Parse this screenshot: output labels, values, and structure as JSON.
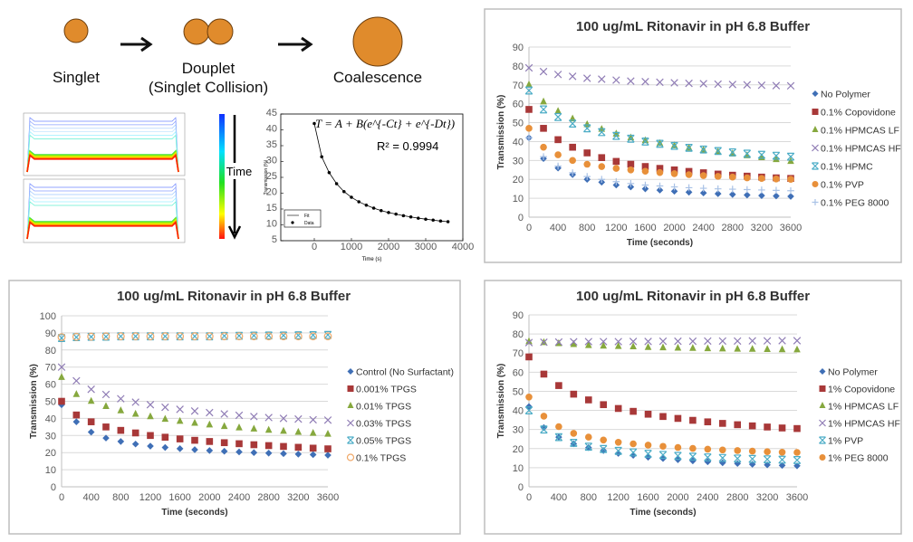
{
  "schematic": {
    "singlet_label": "Singlet",
    "douplet_label": "Douplet",
    "douplet_sub": "(Singlet Collision)",
    "coalescence_label": "Coalescence",
    "time_label": "Time",
    "droplet_color": "#e08b2c"
  },
  "chart_data": [
    {
      "id": "fit",
      "type": "scatter",
      "title": "",
      "equation": "T = A + B(e^{-Ct} + e^{-Dt})",
      "equation_display": "T = A + B(e",
      "r2_label": "R² = 0.9994",
      "xlabel": "Time (s)",
      "ylabel": "Transmission (%)",
      "xlim": [
        -900,
        4000
      ],
      "ylim": [
        5,
        45
      ],
      "xticks": [
        0,
        1000,
        2000,
        3000,
        4000
      ],
      "yticks": [
        5,
        10,
        15,
        20,
        25,
        30,
        35,
        40,
        45
      ],
      "grid": false,
      "legend": "bottom-left",
      "x": [
        0,
        200,
        400,
        600,
        800,
        1000,
        1200,
        1400,
        1600,
        1800,
        2000,
        2200,
        2400,
        2600,
        2800,
        3000,
        3200,
        3400,
        3600
      ],
      "series": [
        {
          "name": "Fit",
          "marker": "line",
          "color": "#000000",
          "values": [
            42,
            31.5,
            26.5,
            23,
            20.5,
            18.7,
            17.3,
            16.2,
            15.3,
            14.5,
            13.9,
            13.4,
            12.9,
            12.5,
            12.1,
            11.8,
            11.5,
            11.2,
            11
          ]
        },
        {
          "name": "Data",
          "marker": "dot",
          "color": "#000000",
          "values": [
            42,
            31.5,
            26.5,
            23,
            20.5,
            18.7,
            17.3,
            16.2,
            15.3,
            14.5,
            13.9,
            13.4,
            12.9,
            12.5,
            12.1,
            11.8,
            11.5,
            11.2,
            11
          ]
        }
      ]
    },
    {
      "id": "polymer01",
      "type": "scatter",
      "title": "100 ug/mL Ritonavir in pH 6.8 Buffer",
      "xlabel": "Time (seconds)",
      "ylabel": "Transmission (%)",
      "xlim": [
        0,
        3600
      ],
      "ylim": [
        0,
        90
      ],
      "xticks": [
        0,
        400,
        800,
        1200,
        1600,
        2000,
        2400,
        2800,
        3200,
        3600
      ],
      "yticks": [
        0,
        10,
        20,
        30,
        40,
        50,
        60,
        70,
        80,
        90
      ],
      "grid": true,
      "legend": "right",
      "x": [
        0,
        200,
        400,
        600,
        800,
        1000,
        1200,
        1400,
        1600,
        1800,
        2000,
        2200,
        2400,
        2600,
        2800,
        3000,
        3200,
        3400,
        3600
      ],
      "series": [
        {
          "name": "No Polymer",
          "marker": "diamond",
          "color": "#3f6fb6",
          "values": [
            42,
            31,
            26,
            22.5,
            20,
            18.5,
            17,
            16,
            15,
            14.3,
            13.7,
            13.2,
            12.8,
            12.4,
            12,
            11.7,
            11.4,
            11.2,
            11
          ]
        },
        {
          "name": "0.1% Copovidone",
          "marker": "square",
          "color": "#a83838",
          "values": [
            57,
            47,
            41,
            37,
            34,
            31.5,
            29.5,
            28,
            26.8,
            25.8,
            25,
            24.2,
            23.5,
            22.8,
            22.2,
            21.7,
            21.2,
            20.8,
            20.5
          ]
        },
        {
          "name": "0.1% HPMCAS LF",
          "marker": "triangle",
          "color": "#86a83e",
          "values": [
            70,
            61,
            56,
            52,
            49,
            46.5,
            44,
            42,
            40.5,
            39,
            37.8,
            36.6,
            35.5,
            34.5,
            33.5,
            32.5,
            31.5,
            30.5,
            29.5
          ]
        },
        {
          "name": "0.1% HPMCAS HF",
          "marker": "x",
          "color": "#8f7cb5",
          "values": [
            79,
            77,
            75.5,
            74.5,
            73.5,
            73,
            72.5,
            72,
            71.7,
            71.4,
            71.1,
            70.8,
            70.6,
            70.4,
            70.2,
            70,
            69.8,
            69.6,
            69.5
          ]
        },
        {
          "name": "0.1% HPMC",
          "marker": "star",
          "color": "#4bacc6",
          "values": [
            67,
            57,
            53,
            49.5,
            47,
            45,
            43,
            41.5,
            40,
            38.8,
            37.7,
            36.7,
            35.8,
            35,
            34.3,
            33.6,
            33,
            32.5,
            32
          ]
        },
        {
          "name": "0.1% PVP",
          "marker": "circle",
          "color": "#e8903a",
          "values": [
            47,
            37,
            33,
            30,
            28,
            26.8,
            25.8,
            25,
            24.3,
            23.6,
            23,
            22.5,
            22,
            21.6,
            21.2,
            20.8,
            20.5,
            20.2,
            20
          ]
        },
        {
          "name": "0.1% PEG 8000",
          "marker": "plus",
          "color": "#a9c2e6",
          "values": [
            42,
            32,
            27,
            23.5,
            21.5,
            20,
            18.8,
            17.8,
            17,
            16.5,
            16,
            15.6,
            15.3,
            15,
            14.8,
            14.6,
            14.4,
            14.2,
            14
          ]
        }
      ]
    },
    {
      "id": "tpgs",
      "type": "scatter",
      "title": "100 ug/mL Ritonavir in pH 6.8 Buffer",
      "xlabel": "Time (seconds)",
      "ylabel": "Transmission (%)",
      "xlim": [
        0,
        3600
      ],
      "ylim": [
        0,
        100
      ],
      "xticks": [
        0,
        400,
        800,
        1200,
        1600,
        2000,
        2400,
        2800,
        3200,
        3600
      ],
      "yticks": [
        0,
        10,
        20,
        30,
        40,
        50,
        60,
        70,
        80,
        90,
        100
      ],
      "grid": true,
      "legend": "right",
      "x": [
        0,
        200,
        400,
        600,
        800,
        1000,
        1200,
        1400,
        1600,
        1800,
        2000,
        2200,
        2400,
        2600,
        2800,
        3000,
        3200,
        3400,
        3600
      ],
      "series": [
        {
          "name": "Control (No Surfactant)",
          "marker": "diamond",
          "color": "#3f6fb6",
          "values": [
            48,
            38,
            32,
            28.5,
            26.5,
            25,
            23.8,
            23,
            22.3,
            21.7,
            21.2,
            20.8,
            20.4,
            20,
            19.7,
            19.4,
            19.1,
            18.8,
            18.5
          ]
        },
        {
          "name": "0.001% TPGS",
          "marker": "square",
          "color": "#a83838",
          "values": [
            50,
            42,
            38,
            35,
            33,
            31.5,
            30,
            29,
            28,
            27.2,
            26.5,
            25.8,
            25.2,
            24.6,
            24.1,
            23.6,
            23.1,
            22.6,
            22.2
          ]
        },
        {
          "name": "0.01% TPGS",
          "marker": "triangle",
          "color": "#86a83e",
          "values": [
            64,
            54,
            50,
            47,
            44.5,
            42.5,
            41,
            39.5,
            38.3,
            37.2,
            36.2,
            35.3,
            34.5,
            33.8,
            33.1,
            32.5,
            31.9,
            31.3,
            30.8
          ]
        },
        {
          "name": "0.03% TPGS",
          "marker": "x",
          "color": "#8f7cb5",
          "values": [
            70,
            62,
            57,
            54,
            51.5,
            49.5,
            48,
            46.5,
            45.3,
            44.3,
            43.4,
            42.6,
            41.8,
            41.1,
            40.5,
            40,
            39.6,
            39.2,
            39
          ]
        },
        {
          "name": "0.05% TPGS",
          "marker": "star",
          "color": "#4bacc6",
          "values": [
            87,
            87.5,
            87.7,
            87.8,
            88,
            88,
            88,
            88,
            88,
            88,
            88,
            88.2,
            88.3,
            88.4,
            88.5,
            88.5,
            88.6,
            88.7,
            88.8
          ]
        },
        {
          "name": "0.1% TPGS",
          "marker": "ocircle",
          "color": "#f0a868",
          "values": [
            87.5,
            87.7,
            87.8,
            88,
            88,
            88,
            88,
            88,
            88,
            88,
            88,
            88,
            88,
            88,
            88,
            88,
            88,
            88,
            88
          ]
        }
      ]
    },
    {
      "id": "polymer1",
      "type": "scatter",
      "title": "100 ug/mL Ritonavir in pH 6.8 Buffer",
      "xlabel": "Time (seconds)",
      "ylabel": "Transmission (%)",
      "xlim": [
        0,
        3600
      ],
      "ylim": [
        0,
        90
      ],
      "xticks": [
        0,
        400,
        800,
        1200,
        1600,
        2000,
        2400,
        2800,
        3200,
        3600
      ],
      "yticks": [
        0,
        10,
        20,
        30,
        40,
        50,
        60,
        70,
        80,
        90
      ],
      "grid": true,
      "legend": "right",
      "x": [
        0,
        200,
        400,
        600,
        800,
        1000,
        1200,
        1400,
        1600,
        1800,
        2000,
        2200,
        2400,
        2600,
        2800,
        3000,
        3200,
        3400,
        3600
      ],
      "series": [
        {
          "name": "No Polymer",
          "marker": "diamond",
          "color": "#3f6fb6",
          "values": [
            42,
            31,
            26,
            22.5,
            20.5,
            19,
            17.5,
            16.5,
            15.5,
            14.8,
            14.2,
            13.6,
            13.1,
            12.6,
            12.2,
            11.8,
            11.5,
            11.2,
            11
          ]
        },
        {
          "name": "1% Copovidone",
          "marker": "square",
          "color": "#a83838",
          "values": [
            68,
            59,
            53,
            48.5,
            45.5,
            43,
            41,
            39.5,
            38,
            36.8,
            35.8,
            34.8,
            34,
            33.2,
            32.5,
            31.9,
            31.3,
            30.8,
            30.5
          ]
        },
        {
          "name": "1% HPMCAS LF",
          "marker": "triangle",
          "color": "#86a83e",
          "values": [
            76,
            75.5,
            75,
            74.5,
            74,
            73.7,
            73.5,
            73.3,
            73,
            72.8,
            72.6,
            72.5,
            72.3,
            72.2,
            72.1,
            72,
            71.9,
            71.8,
            71.7
          ]
        },
        {
          "name": "1% HPMCAS HF",
          "marker": "x",
          "color": "#8f7cb5",
          "values": [
            75.5,
            75.7,
            75.8,
            75.9,
            76,
            76,
            76,
            76.1,
            76.1,
            76.2,
            76.2,
            76.2,
            76.3,
            76.3,
            76.3,
            76.4,
            76.4,
            76.5,
            76.5
          ]
        },
        {
          "name": "1% PVP",
          "marker": "star",
          "color": "#4bacc6",
          "values": [
            40,
            30,
            26,
            23,
            21,
            19.8,
            18.8,
            18,
            17.3,
            16.7,
            16.2,
            15.8,
            15.4,
            15.1,
            14.8,
            14.6,
            14.4,
            14.2,
            14
          ]
        },
        {
          "name": "1% PEG 8000",
          "marker": "circle",
          "color": "#e8903a",
          "values": [
            47,
            37,
            31.5,
            28,
            26,
            24.5,
            23.3,
            22.5,
            21.8,
            21.2,
            20.6,
            20.1,
            19.7,
            19.3,
            19,
            18.7,
            18.4,
            18.1,
            18
          ]
        }
      ]
    }
  ]
}
